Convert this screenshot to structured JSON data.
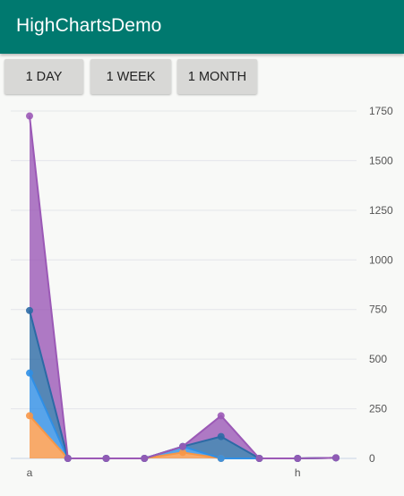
{
  "app": {
    "title": "HighChartsDemo"
  },
  "range_buttons": [
    {
      "label": "1 DAY"
    },
    {
      "label": "1 WEEK"
    },
    {
      "label": "1 MONTH"
    }
  ],
  "chart_data": {
    "type": "area",
    "stacked": true,
    "x_tick_labels": [
      "a",
      "h"
    ],
    "x": [
      0,
      1,
      2,
      3,
      4,
      5,
      6,
      7,
      8
    ],
    "y_ticks": [
      0,
      250,
      500,
      750,
      1000,
      1250,
      1500,
      1750
    ],
    "ylim": [
      0,
      1750
    ],
    "y_axis_side": "right",
    "grid": true,
    "legend": "none",
    "series": [
      {
        "color": "#f79646",
        "values": [
          215,
          0,
          0,
          0,
          30,
          0,
          0,
          0,
          3
        ]
      },
      {
        "color": "#2f8fe6",
        "values": [
          215,
          0,
          0,
          0,
          30,
          0,
          0,
          0,
          0
        ]
      },
      {
        "color": "#2c6aa5",
        "values": [
          315,
          0,
          0,
          0,
          0,
          110,
          0,
          0,
          0
        ]
      },
      {
        "color": "#9b59b6",
        "values": [
          980,
          0,
          0,
          0,
          0,
          105,
          0,
          0,
          0
        ]
      }
    ]
  }
}
